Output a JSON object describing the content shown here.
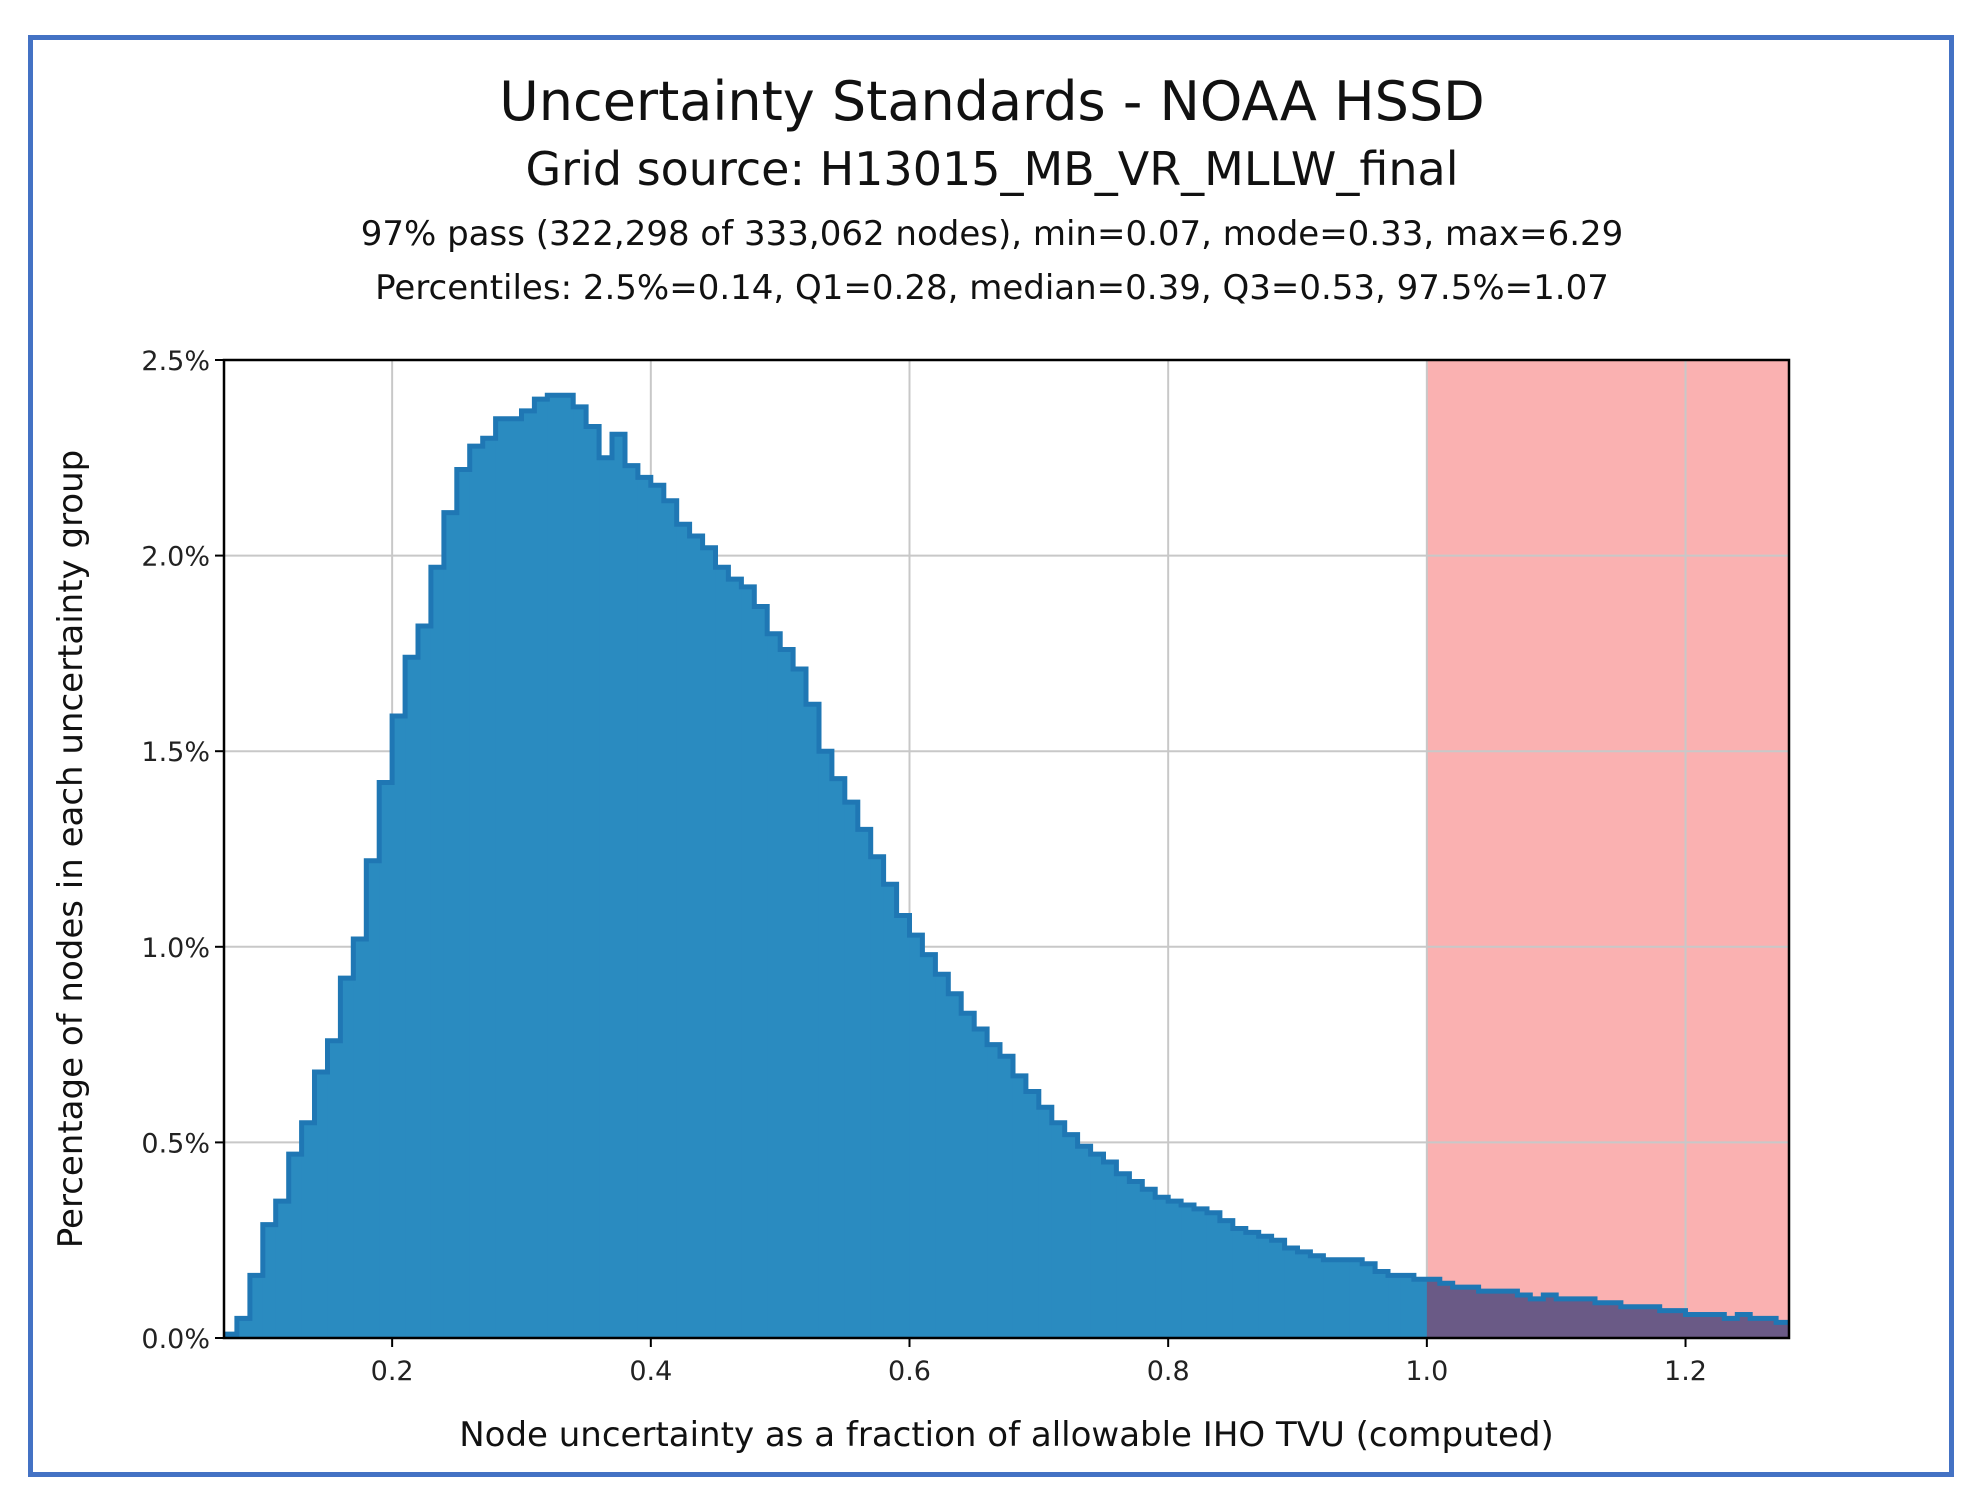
{
  "chart_data": {
    "type": "bar",
    "title": "Uncertainty Standards - NOAA HSSD",
    "subtitle": "Grid source: H13015_MB_VR_MLLW_final",
    "summary_line": "97% pass (322,298 of 333,062 nodes), min=0.07, mode=0.33, max=6.29",
    "percentiles_line": "Percentiles: 2.5%=0.14, Q1=0.28, median=0.39, Q3=0.53, 97.5%=1.07",
    "xlabel": "Node uncertainty as a fraction of allowable IHO TVU (computed)",
    "ylabel": "Percentage of nodes in each uncertainty group",
    "xlim": [
      0.07,
      1.28
    ],
    "ylim": [
      0.0,
      2.5
    ],
    "x_ticks": [
      0.2,
      0.4,
      0.6,
      0.8,
      1.0,
      1.2
    ],
    "x_tick_labels": [
      "0.2",
      "0.4",
      "0.6",
      "0.8",
      "1.0",
      "1.2"
    ],
    "y_ticks": [
      0.0,
      0.5,
      1.0,
      1.5,
      2.0,
      2.5
    ],
    "y_tick_labels": [
      "0.0%",
      "0.5%",
      "1.0%",
      "1.5%",
      "2.0%",
      "2.5%"
    ],
    "grid": true,
    "fail_region": {
      "x_start": 1.0,
      "x_end": 1.28,
      "color": "#fab1b1"
    },
    "bar_color": "#2a8bc0",
    "bar_edge_color": "#1f77b4",
    "overlap_color": "#6a5a86",
    "bin_width": 0.01,
    "bin_start": 0.07,
    "values": [
      0.01,
      0.05,
      0.16,
      0.29,
      0.35,
      0.47,
      0.55,
      0.68,
      0.76,
      0.92,
      1.02,
      1.22,
      1.42,
      1.59,
      1.74,
      1.82,
      1.97,
      2.11,
      2.22,
      2.28,
      2.3,
      2.35,
      2.35,
      2.37,
      2.4,
      2.41,
      2.41,
      2.38,
      2.33,
      2.25,
      2.31,
      2.23,
      2.2,
      2.18,
      2.14,
      2.08,
      2.05,
      2.02,
      1.97,
      1.94,
      1.92,
      1.87,
      1.8,
      1.76,
      1.71,
      1.62,
      1.5,
      1.43,
      1.37,
      1.3,
      1.23,
      1.16,
      1.08,
      1.03,
      0.98,
      0.93,
      0.88,
      0.83,
      0.79,
      0.75,
      0.72,
      0.67,
      0.63,
      0.59,
      0.55,
      0.52,
      0.49,
      0.47,
      0.45,
      0.42,
      0.4,
      0.38,
      0.36,
      0.35,
      0.34,
      0.33,
      0.32,
      0.3,
      0.28,
      0.27,
      0.26,
      0.25,
      0.23,
      0.22,
      0.21,
      0.2,
      0.2,
      0.2,
      0.19,
      0.17,
      0.16,
      0.16,
      0.15,
      0.15,
      0.14,
      0.13,
      0.13,
      0.12,
      0.12,
      0.12,
      0.11,
      0.1,
      0.11,
      0.1,
      0.1,
      0.1,
      0.09,
      0.09,
      0.08,
      0.08,
      0.08,
      0.07,
      0.07,
      0.06,
      0.06,
      0.06,
      0.05,
      0.06,
      0.05,
      0.05,
      0.04,
      0.04
    ]
  }
}
